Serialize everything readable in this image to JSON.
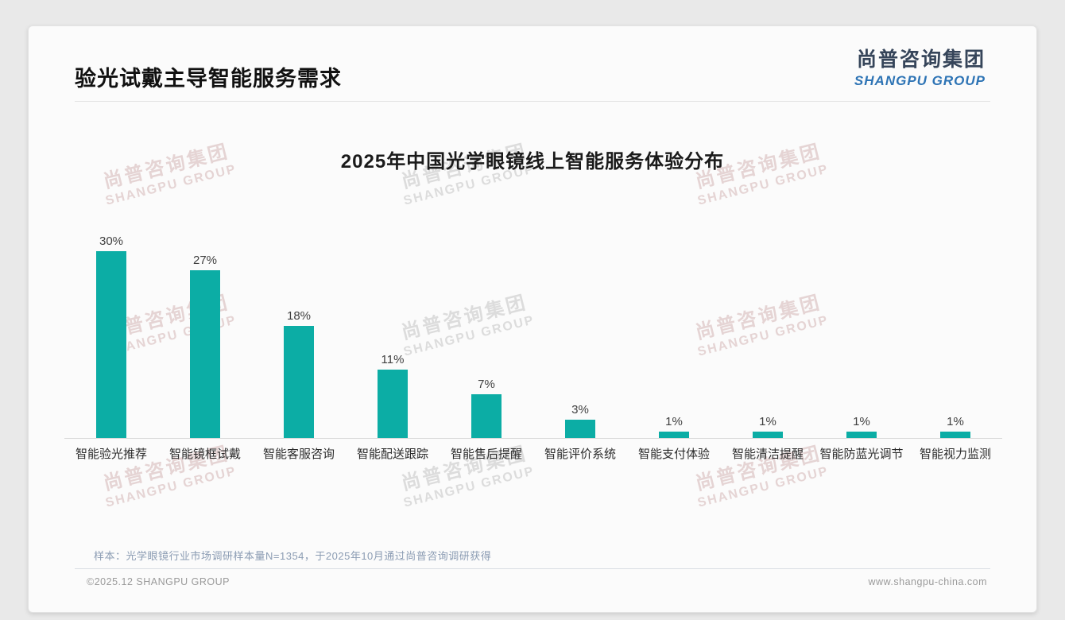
{
  "page": {
    "title": "验光试戴主导智能服务需求",
    "logo": {
      "cn": "尚普咨询集团",
      "en": "SHANGPU GROUP"
    },
    "watermark": {
      "cn": "尚普咨询集团",
      "en": "SHANGPU GROUP"
    },
    "note": "样本：光学眼镜行业市场调研样本量N=1354，于2025年10月通过尚普咨询调研获得",
    "footer_left": "©2025.12 SHANGPU GROUP",
    "footer_right": "www.shangpu-china.com"
  },
  "colors": {
    "bar_teal": "#0cada5",
    "logo_navy": "#36455a",
    "logo_blue": "#2e74b5",
    "note_bluegray": "#8b9cb3",
    "footer_gray": "#9a9a9a"
  },
  "chart_data": {
    "type": "bar",
    "title": "2025年中国光学眼镜线上智能服务体验分布",
    "categories": [
      "智能验光推荐",
      "智能镜框试戴",
      "智能客服咨询",
      "智能配送跟踪",
      "智能售后提醒",
      "智能评价系统",
      "智能支付体验",
      "智能清洁提醒",
      "智能防蓝光调节",
      "智能视力监测"
    ],
    "values": [
      30,
      27,
      18,
      11,
      7,
      3,
      1,
      1,
      1,
      1
    ],
    "unit": "%",
    "bar_color": "#0cada5",
    "xlabel": "",
    "ylabel": "",
    "ylim": [
      0,
      32
    ],
    "grid": false,
    "legend": false,
    "value_labels_shown": true
  }
}
